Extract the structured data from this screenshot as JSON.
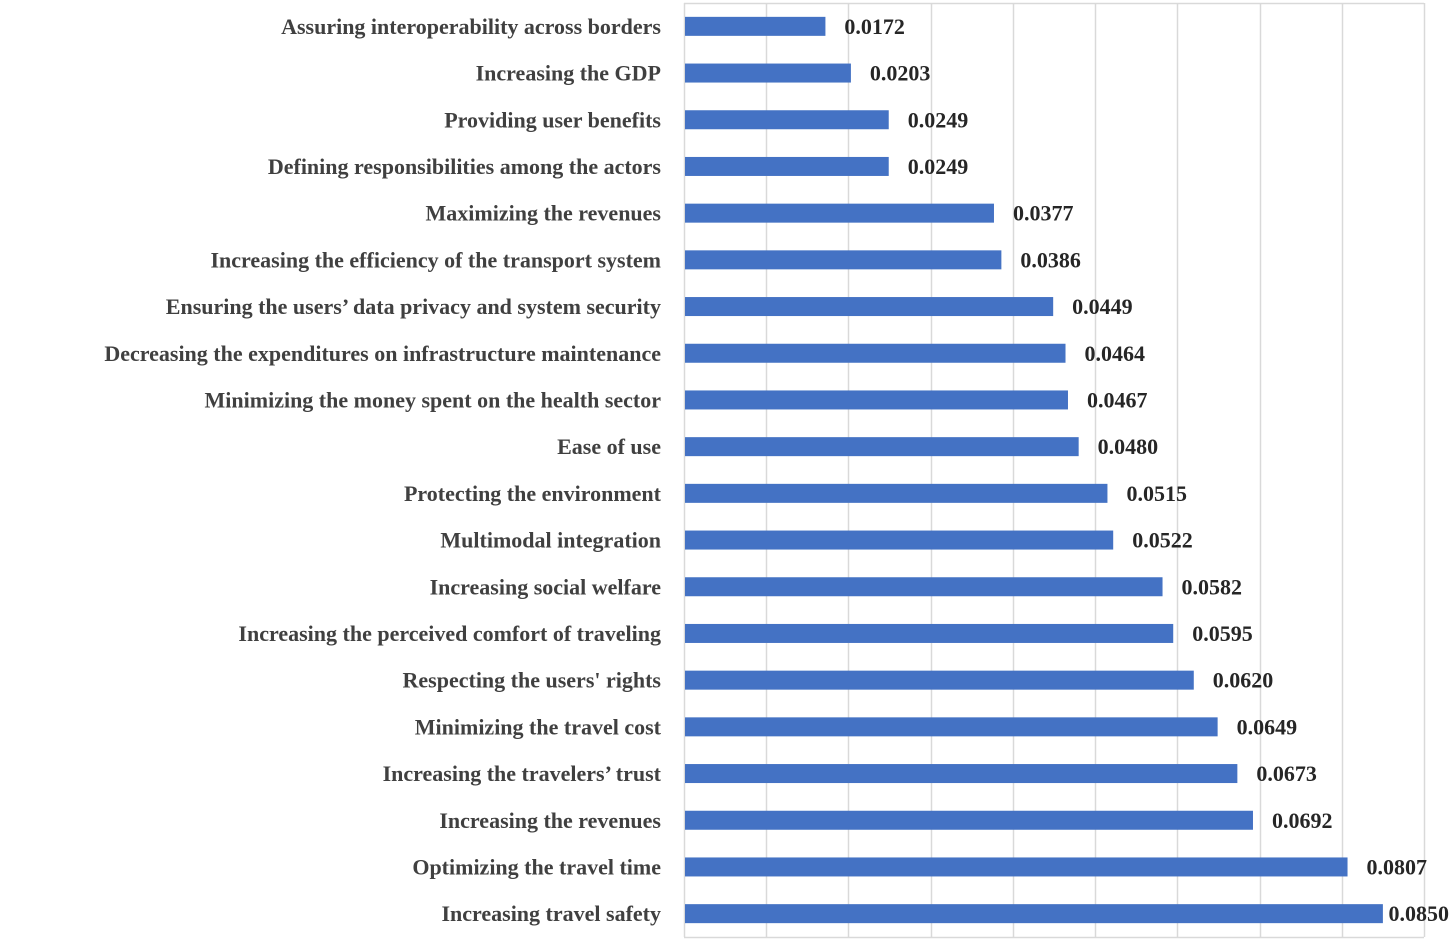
{
  "chart_data": {
    "type": "bar",
    "orientation": "horizontal",
    "title": "",
    "xlabel": "",
    "ylabel": "",
    "xlim": [
      0,
      0.09
    ],
    "grid": true,
    "legend": "none",
    "bar_color": "#4472C4",
    "categories": [
      "Assuring interoperability across borders",
      "Increasing the GDP",
      "Providing user benefits",
      "Defining responsibilities among the actors",
      "Maximizing the revenues",
      "Increasing the efficiency of the transport system",
      "Ensuring the users’ data privacy and system security",
      "Decreasing the expenditures on infrastructure maintenance",
      "Minimizing the money spent on the health sector",
      "Ease of use",
      "Protecting the environment",
      "Multimodal integration",
      "Increasing social welfare",
      "Increasing the perceived comfort of traveling",
      "Respecting the users' rights",
      "Minimizing the travel cost",
      "Increasing the travelers’ trust",
      "Increasing the revenues",
      "Optimizing the travel time",
      "Increasing travel safety"
    ],
    "values": [
      0.0172,
      0.0203,
      0.0249,
      0.0249,
      0.0377,
      0.0386,
      0.0449,
      0.0464,
      0.0467,
      0.048,
      0.0515,
      0.0522,
      0.0582,
      0.0595,
      0.062,
      0.0649,
      0.0673,
      0.0692,
      0.0807,
      0.085
    ],
    "data_labels": [
      "0.0172",
      "0.0203",
      "0.0249",
      "0.0249",
      "0.0377",
      "0.0386",
      "0.0449",
      "0.0464",
      "0.0467",
      "0.0480",
      "0.0515",
      "0.0522",
      "0.0582",
      "0.0595",
      "0.0620",
      "0.0649",
      "0.0673",
      "0.0692",
      "0.0807",
      "0.0850"
    ]
  }
}
